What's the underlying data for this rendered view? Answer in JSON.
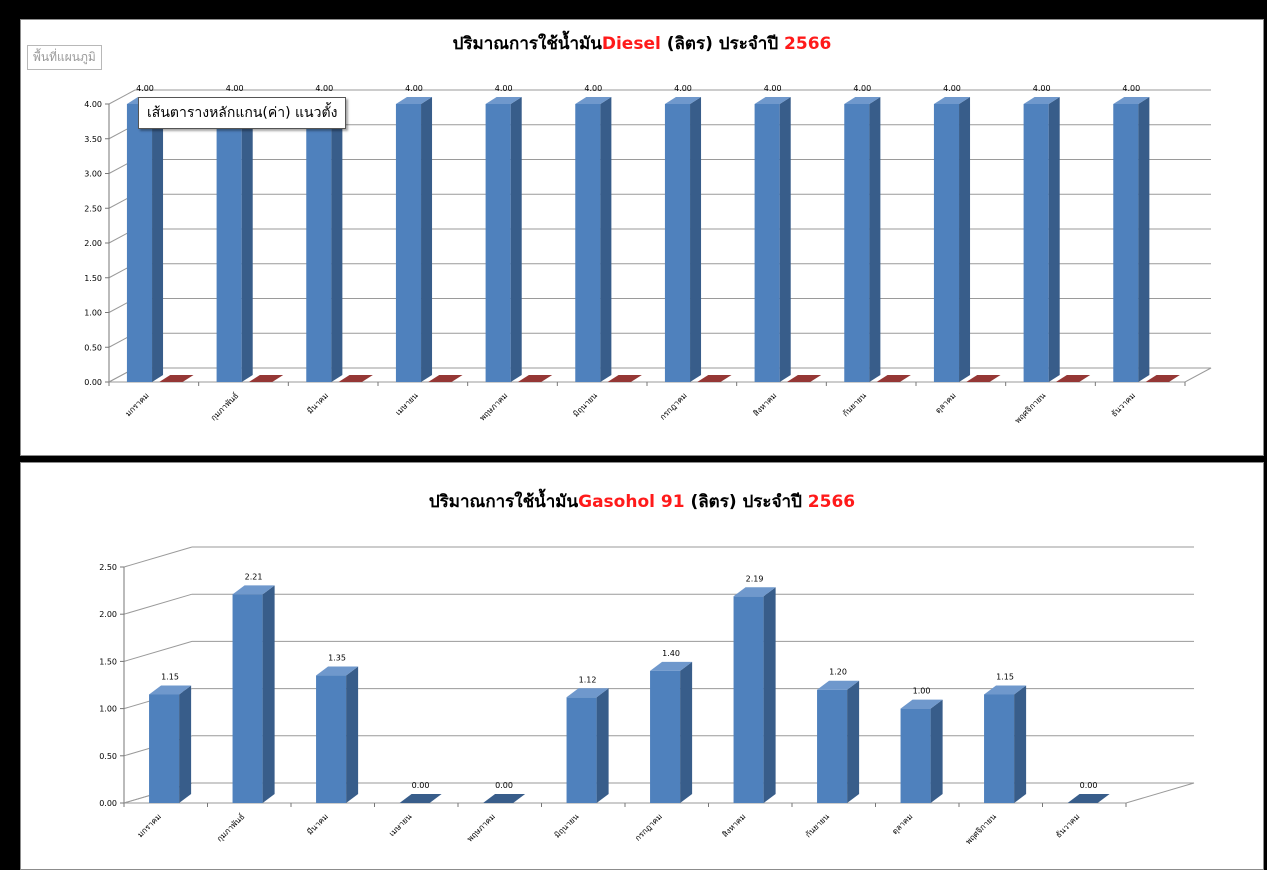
{
  "colors": {
    "bar_front": "#4f81bd",
    "bar_side": "#385d8a",
    "bar_top": "#6f98cc",
    "series2_bar": "#953735",
    "series2_top": "#c0504d",
    "title_highlight": "#ff1a1a",
    "gridline": "#9a9a9a"
  },
  "overlay": {
    "area_label": "พื้นที่แผนภูมิ",
    "tooltip": "เส้นตารางหลักแกน(ค่า) แนวตั้ง"
  },
  "chart_data": [
    {
      "type": "bar",
      "title_pre": "ปริมาณการใช้น้ำมัน",
      "title_fuel": "Diesel",
      "title_mid": " (ลิตร) ประจำปี ",
      "title_year": "2566",
      "categories": [
        "มกราคม",
        "กุมภาพันธ์",
        "มีนาคม",
        "เมษายน",
        "พฤษภาคม",
        "มิถุนายน",
        "กรกฎาคม",
        "สิงหาคม",
        "กันยายน",
        "ตุลาคม",
        "พฤศจิกายน",
        "ธันวาคม"
      ],
      "series": [
        {
          "values": [
            4,
            4,
            4,
            4,
            4,
            4,
            4,
            4,
            4,
            4,
            4,
            4
          ]
        },
        {
          "values": [
            0,
            0,
            0,
            0,
            0,
            0,
            0,
            0,
            0,
            0,
            0,
            0
          ]
        }
      ],
      "data_labels": [
        "4.00",
        "4.00",
        "4.00",
        "4.00",
        "4.00",
        "4.00",
        "4.00",
        "4.00",
        "4.00",
        "4.00",
        "4.00",
        "4.00"
      ],
      "ylim": [
        0,
        4
      ],
      "yticks": [
        "0.00",
        "0.50",
        "1.00",
        "1.50",
        "2.00",
        "2.50",
        "3.00",
        "3.50",
        "4.00"
      ],
      "grid": true,
      "style": "3d-clustered-column"
    },
    {
      "type": "bar",
      "title_pre": "ปริมาณการใช้น้ำมัน",
      "title_fuel": "Gasohol 91",
      "title_mid": " (ลิตร) ประจำปี ",
      "title_year": "2566",
      "categories": [
        "มกราคม",
        "กุมภาพันธ์",
        "มีนาคม",
        "เมษายน",
        "พฤษภาคม",
        "มิถุนายน",
        "กรกฎาคม",
        "สิงหาคม",
        "กันยายน",
        "ตุลาคม",
        "พฤศจิกายน",
        "ธันวาคม"
      ],
      "series": [
        {
          "values": [
            1.15,
            2.21,
            1.35,
            0,
            0,
            1.12,
            1.4,
            2.19,
            1.2,
            1.0,
            1.15,
            0
          ]
        }
      ],
      "data_labels": [
        "1.15",
        "2.21",
        "1.35",
        "0.00",
        "0.00",
        "1.12",
        "1.40",
        "2.19",
        "1.20",
        "1.00",
        "1.15",
        "0.00"
      ],
      "ylim": [
        0,
        2.5
      ],
      "yticks": [
        "0.00",
        "0.50",
        "1.00",
        "1.50",
        "2.00",
        "2.50"
      ],
      "grid": true,
      "style": "3d-column"
    }
  ]
}
